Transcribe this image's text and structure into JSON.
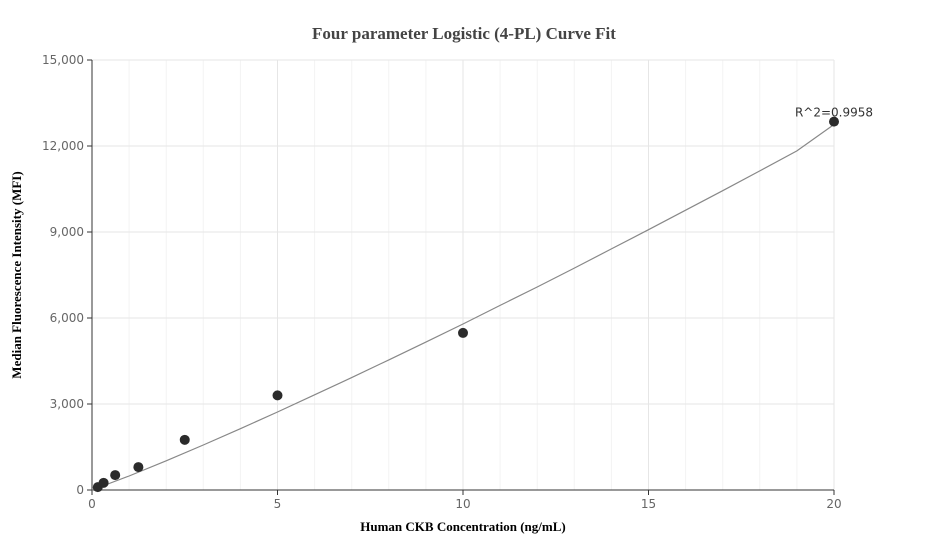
{
  "chart_data": {
    "type": "scatter",
    "title": "Four parameter Logistic (4-PL) Curve Fit",
    "xlabel": "Human CKB Concentration (ng/mL)",
    "ylabel": "Median Fluorescence Intensity (MFI)",
    "xlim": [
      0,
      20
    ],
    "ylim": [
      0,
      15000
    ],
    "x_ticks": [
      0,
      5,
      10,
      15,
      20
    ],
    "x_tick_labels": [
      "0",
      "5",
      "10",
      "15",
      "20"
    ],
    "y_ticks": [
      0,
      3000,
      6000,
      9000,
      12000,
      15000
    ],
    "y_tick_labels": [
      "0",
      "3,000",
      "6,000",
      "9,000",
      "12,000",
      "15,000"
    ],
    "grid": true,
    "points": [
      {
        "x": 0.156,
        "y": 100
      },
      {
        "x": 0.3125,
        "y": 250
      },
      {
        "x": 0.625,
        "y": 520
      },
      {
        "x": 1.25,
        "y": 800
      },
      {
        "x": 2.5,
        "y": 1750
      },
      {
        "x": 5,
        "y": 3300
      },
      {
        "x": 10,
        "y": 5480
      },
      {
        "x": 20,
        "y": 12850
      }
    ],
    "fit_curve": {
      "x": [
        0,
        1,
        2,
        3,
        4,
        5,
        6,
        7,
        8,
        9,
        10,
        11,
        12,
        13,
        14,
        15,
        16,
        17,
        18,
        19,
        20
      ],
      "y": [
        0,
        490,
        1020,
        1570,
        2140,
        2720,
        3320,
        3920,
        4540,
        5160,
        5790,
        6440,
        7080,
        7740,
        8410,
        9080,
        9760,
        10440,
        11130,
        11830,
        12750
      ]
    },
    "annotation": {
      "text": "R^2=0.9958",
      "x": 20,
      "y": 12850
    }
  }
}
